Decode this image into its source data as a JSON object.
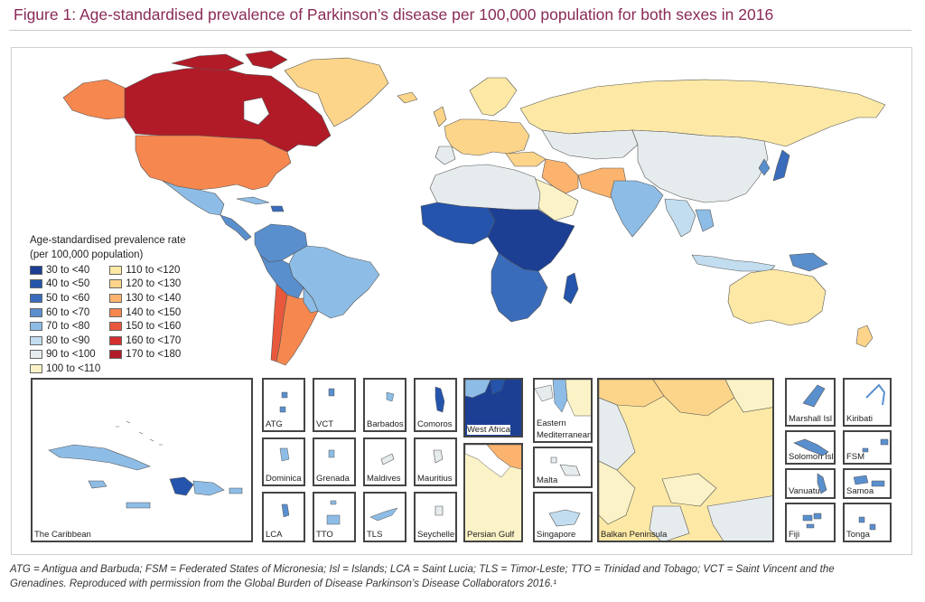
{
  "title": "Figure 1: Age-standardised prevalence of Parkinson’s disease per 100,000 population for both sexes in 2016",
  "legend": {
    "title_line1": "Age-standardised prevalence rate",
    "title_line2": "(per 100,000 population)",
    "col1": [
      {
        "label": "30 to <40",
        "color": "#1c3f94"
      },
      {
        "label": "40 to <50",
        "color": "#2454ac"
      },
      {
        "label": "50 to <60",
        "color": "#3a6cbc"
      },
      {
        "label": "60 to <70",
        "color": "#5a8fce"
      },
      {
        "label": "70 to <80",
        "color": "#8dbde6"
      },
      {
        "label": "80 to <90",
        "color": "#c2ddef"
      },
      {
        "label": "90 to <100",
        "color": "#e6ecee"
      },
      {
        "label": "100 to <110",
        "color": "#fbf3c7"
      }
    ],
    "col2": [
      {
        "label": "110 to <120",
        "color": "#fde9a5"
      },
      {
        "label": "120 to <130",
        "color": "#fdd58a"
      },
      {
        "label": "130 to <140",
        "color": "#fbb36e"
      },
      {
        "label": "140 to <150",
        "color": "#f6874f"
      },
      {
        "label": "150 to <160",
        "color": "#e9583c"
      },
      {
        "label": "160 to <170",
        "color": "#d42f2f"
      },
      {
        "label": "170 to <180",
        "color": "#b11b28"
      }
    ]
  },
  "insets": {
    "caribbean": "The Caribbean",
    "atg": "ATG",
    "vct": "VCT",
    "barbados": "Barbados",
    "comoros": "Comoros",
    "west_africa": "West Africa",
    "eastern_med_1": "Eastern",
    "eastern_med_2": "Mediterranean",
    "balkan": "Balkan Peninsula",
    "marshall": "Marshall Isl",
    "kiribati": "Kiribati",
    "dominica": "Dominica",
    "grenada": "Grenada",
    "maldives": "Maldives",
    "mauritius": "Mauritius",
    "persian_gulf": "Persian Gulf",
    "malta": "Malta",
    "solomon": "Solomon Isl",
    "fsm": "FSM",
    "lca": "LCA",
    "tto": "TTO",
    "tls": "TLS",
    "seychelles": "Seychelles",
    "singapore": "Singapore",
    "vanuatu": "Vanuatu",
    "samoa": "Samoa",
    "fiji": "Fiji",
    "tonga": "Tonga"
  },
  "footnote_line1": "ATG = Antigua and Barbuda; FSM = Federated States of Micronesia; Isl = Islands; LCA = Saint Lucia; TLS = Timor-Leste; TTO = Trinidad and Tobago; VCT = Saint Vincent and the",
  "footnote_line2": "Grenadines. Reproduced with permission from the Global Burden of Disease Parkinson’s Disease Collaborators 2016.¹"
}
